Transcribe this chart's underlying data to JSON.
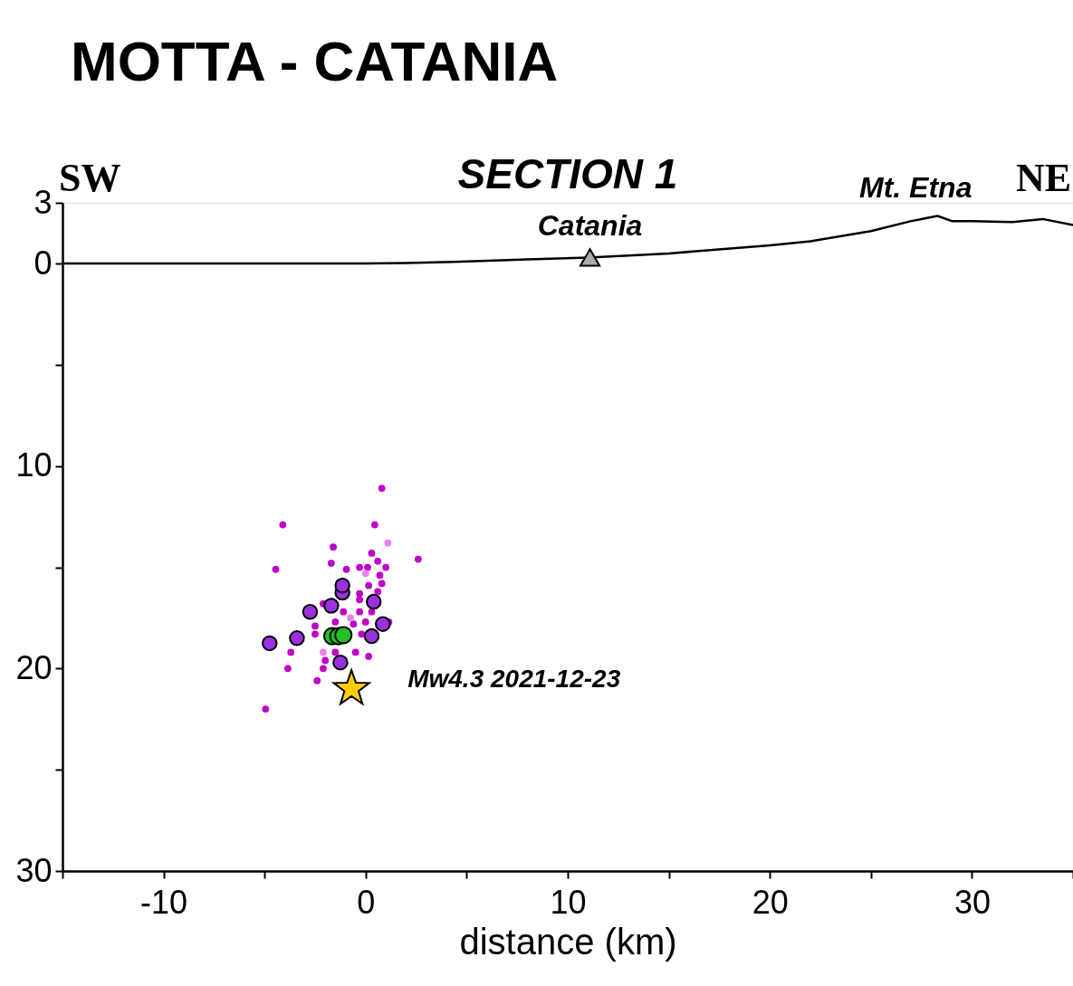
{
  "chart_data": {
    "type": "scatter",
    "title": "MOTTA - CATANIA",
    "subtitle": "SECTION 1",
    "xlabel": "distance (km)",
    "xlim": [
      -15,
      35
    ],
    "xticks": [
      {
        "value": -15,
        "label": null
      },
      -10,
      {
        "value": -5,
        "label": null
      },
      0,
      {
        "value": 5,
        "label": null
      },
      10,
      {
        "value": 15,
        "label": null
      },
      20,
      {
        "value": 25,
        "label": null
      },
      30,
      {
        "value": 35,
        "label": null
      }
    ],
    "ylim": [
      30,
      -3
    ],
    "yticks": [
      {
        "value": -3,
        "label": "3"
      },
      0,
      {
        "value": 5,
        "label": null
      },
      10,
      {
        "value": 15,
        "label": null
      },
      20,
      {
        "value": 25,
        "label": null
      },
      30
    ],
    "grid": false,
    "annotations": [
      "SW",
      "NE",
      {
        "text": "Mt. Etna",
        "x": 28.3,
        "y": -2.35
      },
      {
        "text": "Mw4.3 2021-12-23",
        "x": -0.7,
        "y": 21.0
      }
    ],
    "series": [
      {
        "type": "line",
        "color": "#000000",
        "marker": "none",
        "line_style": "solid",
        "x": [
          -15,
          -5,
          0,
          2,
          5,
          8,
          11,
          15,
          20,
          22,
          25,
          27,
          28.3,
          29,
          30,
          32,
          33.5,
          35
        ],
        "values": [
          0,
          0,
          0,
          -0.03,
          -0.1,
          -0.2,
          -0.3,
          -0.5,
          -0.9,
          -1.1,
          -1.6,
          -2.1,
          -2.35,
          -2.1,
          -2.1,
          -2.05,
          -2.2,
          -1.9
        ]
      },
      {
        "type": "scatter",
        "color": "#c000c8",
        "marker": "circle",
        "x": [
          0.8,
          -4.1,
          0.45,
          -1.6,
          2.6,
          -4.45,
          -1.7,
          0.3,
          0.6,
          1.0,
          -0.95,
          -0.3,
          0.1,
          0.7,
          0.8,
          0.6,
          -0.3,
          0.3,
          -0.3,
          -1.1,
          -2.1,
          -2.5,
          -2.5,
          0.0,
          1.15,
          -3.7,
          -3.85,
          -2.4,
          -4.95,
          -2.0,
          -1.5,
          -0.5,
          0.15,
          -2.1,
          -0.2,
          -1.5,
          -0.6,
          0.15,
          -0.3
        ],
        "values": [
          11.1,
          12.9,
          12.9,
          14.0,
          14.6,
          15.1,
          14.8,
          14.3,
          14.7,
          15.0,
          15.1,
          15.0,
          15.0,
          15.4,
          15.8,
          16.2,
          16.6,
          17.2,
          17.2,
          17.2,
          16.8,
          17.9,
          18.3,
          17.7,
          17.7,
          19.2,
          20.0,
          20.6,
          22.0,
          19.6,
          19.2,
          19.2,
          19.4,
          20.0,
          18.3,
          17.7,
          17.8,
          15.9,
          16.3
        ]
      },
      {
        "type": "scatter",
        "color": "#ee80ee",
        "marker": "circle",
        "x": [
          1.1,
          0.0,
          -0.75,
          -2.1
        ],
        "values": [
          13.8,
          15.3,
          17.5,
          19.2
        ]
      },
      {
        "type": "scatter",
        "color": "#9b30e0",
        "marker": "circle",
        "x": [
          -4.75,
          -3.4,
          -2.75,
          -1.7,
          -1.15,
          -1.15,
          0.4,
          0.85,
          0.3,
          -1.25
        ],
        "values": [
          18.75,
          18.5,
          17.2,
          16.9,
          16.25,
          15.9,
          16.7,
          17.8,
          18.4,
          19.7
        ]
      },
      {
        "type": "scatter",
        "color": "#22c022",
        "marker": "circle",
        "x": [
          -1.65,
          -1.35,
          -1.1
        ],
        "values": [
          18.4,
          18.4,
          18.35
        ]
      },
      {
        "type": "scatter",
        "color": "#ffcc00",
        "marker": "star",
        "x": [
          -0.7
        ],
        "values": [
          21.0
        ]
      },
      {
        "type": "scatter",
        "name": "Catania",
        "color": "#aaaaaa",
        "marker": "triangle",
        "x": [
          11.1
        ],
        "values": [
          -0.3
        ]
      }
    ]
  }
}
